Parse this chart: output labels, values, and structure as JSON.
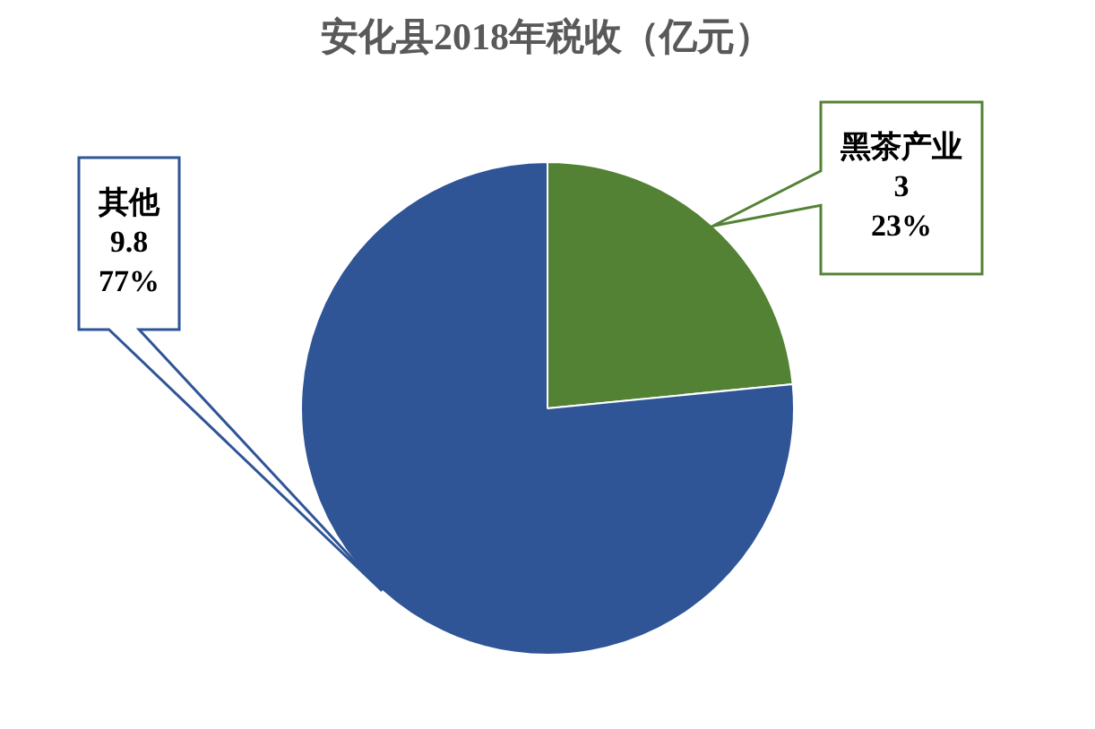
{
  "chart_data": {
    "type": "pie",
    "title": "安化县2018年税收（亿元）",
    "categories": [
      "黑茶产业",
      "其他"
    ],
    "values": [
      3,
      9.8
    ],
    "colors": [
      "#548235",
      "#2f5597"
    ],
    "value_labels": [
      "3\n23%",
      "9.8\n77%"
    ],
    "legend": false
  }
}
